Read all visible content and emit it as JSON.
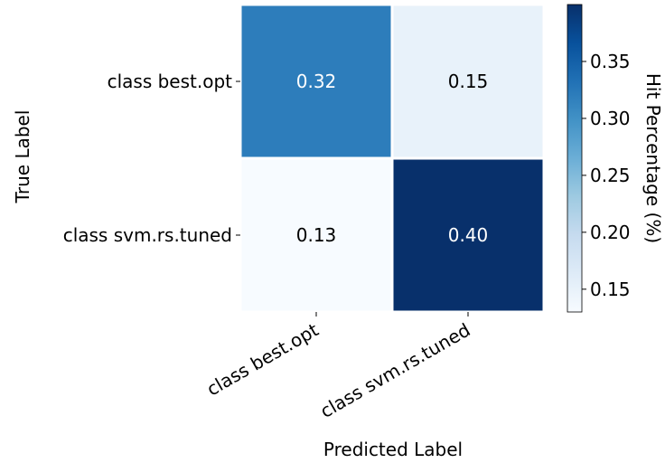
{
  "chart_data": {
    "type": "heatmap",
    "xlabel": "Predicted Label",
    "ylabel": "True Label",
    "x_categories": [
      "class best.opt",
      "class svm.rs.tuned"
    ],
    "y_categories": [
      "class best.opt",
      "class svm.rs.tuned"
    ],
    "values": [
      [
        0.32,
        0.15
      ],
      [
        0.13,
        0.4
      ]
    ],
    "cell_labels": [
      [
        "0.32",
        "0.15"
      ],
      [
        "0.13",
        "0.40"
      ]
    ],
    "colorbar": {
      "label": "Hit Percentage (%)",
      "range": [
        0.13,
        0.4
      ],
      "ticks": [
        0.15,
        0.2,
        0.25,
        0.3,
        0.35
      ],
      "tick_labels": [
        "0.15",
        "0.20",
        "0.25",
        "0.30",
        "0.35"
      ],
      "colormap": "Blues"
    },
    "grid": false
  }
}
